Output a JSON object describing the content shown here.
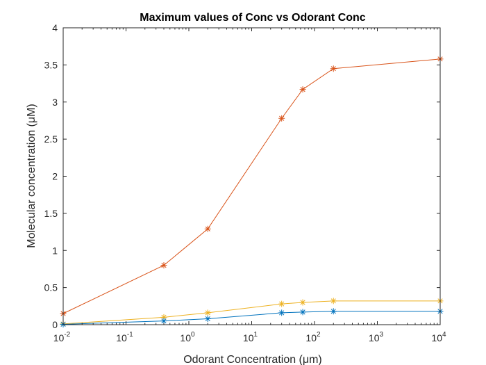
{
  "chart_data": {
    "type": "line",
    "title": "Maximum values of Conc vs Odorant Conc",
    "xlabel": "Odorant Concentration (μm)",
    "ylabel": "Molecular concentration (μM)",
    "xscale": "log",
    "xlim": [
      0.01,
      10000
    ],
    "ylim": [
      0,
      4
    ],
    "x": [
      0.01,
      0.4,
      2,
      30,
      65,
      200,
      10000
    ],
    "x_ticks": [
      {
        "base": "10",
        "exp": "-2",
        "value": 0.01
      },
      {
        "base": "10",
        "exp": "-1",
        "value": 0.1
      },
      {
        "base": "10",
        "exp": "0",
        "value": 1
      },
      {
        "base": "10",
        "exp": "1",
        "value": 10
      },
      {
        "base": "10",
        "exp": "2",
        "value": 100
      },
      {
        "base": "10",
        "exp": "3",
        "value": 1000
      },
      {
        "base": "10",
        "exp": "4",
        "value": 10000
      }
    ],
    "y_ticks": [
      {
        "label": "0",
        "value": 0
      },
      {
        "label": "0.5",
        "value": 0.5
      },
      {
        "label": "1",
        "value": 1
      },
      {
        "label": "1.5",
        "value": 1.5
      },
      {
        "label": "2",
        "value": 2
      },
      {
        "label": "2.5",
        "value": 2.5
      },
      {
        "label": "3",
        "value": 3
      },
      {
        "label": "3.5",
        "value": 3.5
      },
      {
        "label": "4",
        "value": 4
      }
    ],
    "grid": false,
    "marker": "asterisk",
    "series": [
      {
        "color": "#D95319",
        "values": [
          0.15,
          0.8,
          1.29,
          2.78,
          3.17,
          3.45,
          3.58
        ]
      },
      {
        "color": "#EDB120",
        "values": [
          0.01,
          0.1,
          0.16,
          0.28,
          0.3,
          0.32,
          0.32
        ]
      },
      {
        "color": "#0072BD",
        "values": [
          0.005,
          0.05,
          0.08,
          0.16,
          0.17,
          0.18,
          0.18
        ]
      }
    ]
  }
}
